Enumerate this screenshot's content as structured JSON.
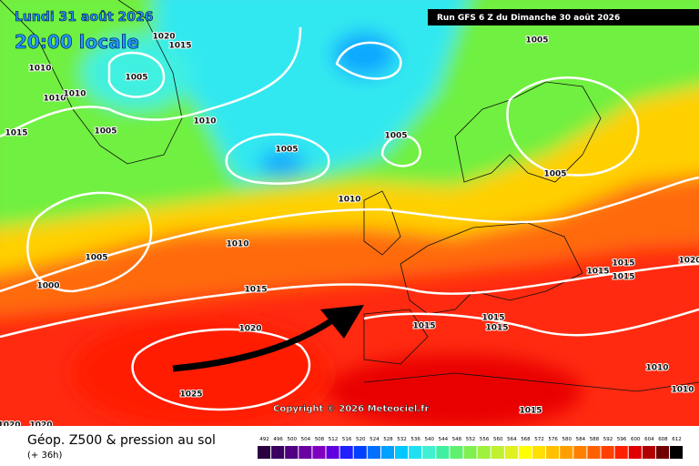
{
  "header": {
    "date": "Lundi 31 août 2026",
    "time": "20:00 locale",
    "run": "Run GFS 6 Z du Dimanche 30 août 2026"
  },
  "isobars": [
    1020,
    1015,
    1005,
    1010,
    1010,
    1010,
    1015,
    1005,
    1010,
    1005,
    1005,
    1005,
    1010,
    1005,
    1010,
    1005,
    1000,
    1015,
    1020,
    1025,
    1015,
    1015,
    1015,
    1015,
    1015,
    1015,
    1020,
    1010,
    1010,
    1015,
    1020,
    1020
  ],
  "footer": {
    "copyright": "Copyright © 2026 Meteociel.fr",
    "title": "Géop. Z500 & pression au sol",
    "subtitle": "(+ 36h)"
  },
  "legend": {
    "values": [
      492,
      496,
      500,
      504,
      508,
      512,
      516,
      520,
      524,
      528,
      532,
      536,
      540,
      544,
      548,
      552,
      556,
      560,
      564,
      568,
      572,
      576,
      580,
      584,
      588,
      592,
      596,
      600,
      604,
      608,
      612
    ],
    "colors": [
      "#2a0040",
      "#3a0060",
      "#500080",
      "#6a00a0",
      "#8000c0",
      "#6000e0",
      "#2020ff",
      "#0040ff",
      "#0070ff",
      "#00a0ff",
      "#00c8ff",
      "#20e0f0",
      "#40f0d0",
      "#40f0a0",
      "#60f070",
      "#80f050",
      "#a0f040",
      "#c0f030",
      "#e0f020",
      "#ffff00",
      "#ffe000",
      "#ffc000",
      "#ffa000",
      "#ff8000",
      "#ff6000",
      "#ff4000",
      "#ff2000",
      "#e00000",
      "#b00000",
      "#700000",
      "#000000"
    ]
  }
}
